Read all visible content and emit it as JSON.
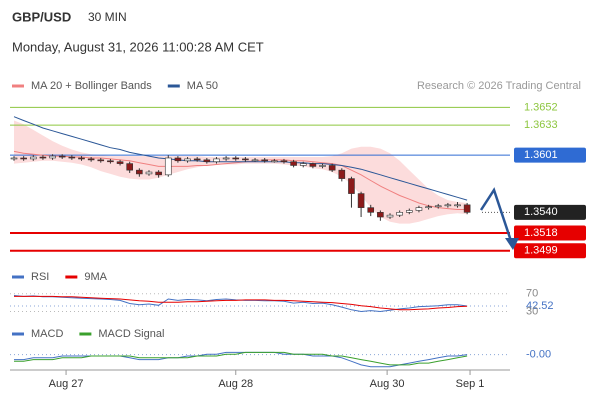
{
  "header": {
    "symbol": "GBP/USD",
    "interval": "30 MIN",
    "datetime": "Monday, August 31, 2026 11:00:28 AM CET",
    "credit": "Research © 2026 Trading Central"
  },
  "chart_data": [
    {
      "type": "candlestick",
      "ylim": [
        1.3487,
        1.3662
      ],
      "xlim": [
        -0.4,
        50.6
      ],
      "xticks": [
        {
          "value": 5.4,
          "label": "Aug 27"
        },
        {
          "value": 23,
          "label": "Aug 28"
        },
        {
          "value": 38.7,
          "label": "Aug 30"
        },
        {
          "value": 47.3,
          "label": "Sep 1"
        }
      ],
      "up_color": "#ffffff",
      "down_color": "#8b1a1a",
      "open": [
        1.3597,
        1.3598,
        1.3597,
        1.3599,
        1.3598,
        1.36,
        1.3599,
        1.3598,
        1.3597,
        1.3596,
        1.3595,
        1.3594,
        1.3592,
        1.3585,
        1.3581,
        1.3583,
        1.358,
        1.3598,
        1.3595,
        1.3597,
        1.3596,
        1.3594,
        1.3597,
        1.3598,
        1.3597,
        1.3596,
        1.3596,
        1.3595,
        1.3595,
        1.3594,
        1.359,
        1.3592,
        1.3589,
        1.359,
        1.3585,
        1.3576,
        1.356,
        1.3545,
        1.354,
        1.3535,
        1.3537,
        1.354,
        1.3542,
        1.3545,
        1.3546,
        1.3547,
        1.3548,
        1.3548
      ],
      "high": [
        1.36,
        1.36,
        1.3601,
        1.3601,
        1.3602,
        1.3602,
        1.3601,
        1.36,
        1.3599,
        1.3598,
        1.3597,
        1.3596,
        1.3594,
        1.3587,
        1.3585,
        1.3585,
        1.3601,
        1.36,
        1.3599,
        1.3599,
        1.3598,
        1.3599,
        1.36,
        1.36,
        1.3599,
        1.3598,
        1.3598,
        1.3597,
        1.3597,
        1.3596,
        1.3594,
        1.3593,
        1.3592,
        1.3592,
        1.3587,
        1.3578,
        1.3562,
        1.3548,
        1.3542,
        1.3539,
        1.3542,
        1.3544,
        1.3547,
        1.3548,
        1.3549,
        1.355,
        1.3551,
        1.355
      ],
      "low": [
        1.3595,
        1.3595,
        1.3595,
        1.3596,
        1.3596,
        1.3597,
        1.3596,
        1.3595,
        1.3594,
        1.3593,
        1.3592,
        1.359,
        1.3582,
        1.3578,
        1.3579,
        1.3577,
        1.3578,
        1.3593,
        1.3593,
        1.3594,
        1.3592,
        1.3592,
        1.3595,
        1.3595,
        1.3594,
        1.3594,
        1.3593,
        1.3593,
        1.3592,
        1.3588,
        1.3588,
        1.3587,
        1.3587,
        1.3583,
        1.3573,
        1.3545,
        1.3535,
        1.3536,
        1.3531,
        1.3533,
        1.3535,
        1.3538,
        1.354,
        1.3543,
        1.3544,
        1.3545,
        1.3545,
        1.3538
      ],
      "close": [
        1.3598,
        1.3597,
        1.3599,
        1.3598,
        1.36,
        1.3599,
        1.3598,
        1.3597,
        1.3596,
        1.3595,
        1.3594,
        1.3592,
        1.3585,
        1.3581,
        1.3583,
        1.358,
        1.3598,
        1.3595,
        1.3597,
        1.3596,
        1.3594,
        1.3597,
        1.3598,
        1.3597,
        1.3596,
        1.3596,
        1.3595,
        1.3595,
        1.3594,
        1.359,
        1.3592,
        1.3589,
        1.359,
        1.3585,
        1.3576,
        1.356,
        1.3545,
        1.354,
        1.3535,
        1.3537,
        1.354,
        1.3542,
        1.3545,
        1.3546,
        1.3547,
        1.3548,
        1.3548,
        1.354
      ],
      "series": [
        {
          "name": "MA 20 + Bollinger Bands",
          "color": "#f08080",
          "band_color": "#fbd3d3",
          "values": [
            1.3605,
            1.3603,
            1.3602,
            1.3601,
            1.36,
            1.36,
            1.3599,
            1.3599,
            1.3598,
            1.3598,
            1.3597,
            1.3596,
            1.3595,
            1.3593,
            1.3591,
            1.3589,
            1.3589,
            1.3589,
            1.3589,
            1.359,
            1.359,
            1.3591,
            1.3592,
            1.3593,
            1.3594,
            1.3595,
            1.3596,
            1.3596,
            1.3596,
            1.3595,
            1.3595,
            1.3594,
            1.3593,
            1.3592,
            1.359,
            1.3585,
            1.358,
            1.3574,
            1.3568,
            1.3563,
            1.3558,
            1.3554,
            1.355,
            1.3547,
            1.3545,
            1.3544,
            1.3543,
            1.3543
          ],
          "upper": [
            1.3638,
            1.3634,
            1.3628,
            1.3622,
            1.3616,
            1.3611,
            1.3607,
            1.3604,
            1.3602,
            1.3601,
            1.36,
            1.36,
            1.36,
            1.36,
            1.36,
            1.36,
            1.36,
            1.36,
            1.36,
            1.36,
            1.3599,
            1.3599,
            1.3599,
            1.3599,
            1.3599,
            1.3599,
            1.3599,
            1.3599,
            1.3599,
            1.3599,
            1.3599,
            1.3599,
            1.3599,
            1.36,
            1.3603,
            1.3608,
            1.361,
            1.361,
            1.3608,
            1.3603,
            1.3595,
            1.3585,
            1.3575,
            1.3565,
            1.3558,
            1.3553,
            1.3551,
            1.355
          ],
          "lower": [
            1.3592,
            1.3593,
            1.3594,
            1.3595,
            1.3595,
            1.3594,
            1.3593,
            1.3591,
            1.3588,
            1.3584,
            1.3581,
            1.3578,
            1.3576,
            1.3575,
            1.3575,
            1.3577,
            1.358,
            1.3583,
            1.3586,
            1.3588,
            1.359,
            1.3591,
            1.3591,
            1.3591,
            1.3592,
            1.3592,
            1.3592,
            1.3592,
            1.3591,
            1.359,
            1.3589,
            1.3587,
            1.3586,
            1.3583,
            1.3578,
            1.357,
            1.3558,
            1.3545,
            1.3535,
            1.353,
            1.3528,
            1.3528,
            1.353,
            1.3533,
            1.3536,
            1.3538,
            1.3539,
            1.3538
          ]
        },
        {
          "name": "MA 50",
          "color": "#2b5797",
          "values": [
            1.3642,
            1.3638,
            1.3634,
            1.363,
            1.3627,
            1.3624,
            1.3621,
            1.3618,
            1.3615,
            1.3612,
            1.3609,
            1.3607,
            1.3604,
            1.3602,
            1.36,
            1.3598,
            1.3597,
            1.3596,
            1.3595,
            1.3595,
            1.3594,
            1.3594,
            1.3594,
            1.3594,
            1.3594,
            1.3594,
            1.3594,
            1.3594,
            1.3594,
            1.3593,
            1.3593,
            1.3592,
            1.3592,
            1.3591,
            1.359,
            1.3588,
            1.3586,
            1.3583,
            1.358,
            1.3577,
            1.3574,
            1.3571,
            1.3568,
            1.3565,
            1.3562,
            1.3559,
            1.3556,
            1.3553
          ]
        }
      ],
      "levels": [
        {
          "value": 1.3652,
          "color": "#8dc63f",
          "style": "text"
        },
        {
          "value": 1.3633,
          "color": "#8dc63f",
          "style": "text"
        },
        {
          "value": 1.3601,
          "color": "#2f6bd3",
          "style": "box"
        },
        {
          "value": 1.354,
          "label": "1.3540",
          "color": "#222222",
          "style": "current"
        },
        {
          "value": 1.3518,
          "color": "#e60000",
          "style": "box"
        },
        {
          "value": 1.3499,
          "color": "#e60000",
          "style": "box"
        }
      ]
    },
    {
      "type": "line",
      "ylim": [
        20,
        85
      ],
      "yticks": [
        70,
        42.52,
        30
      ],
      "series": [
        {
          "name": "RSI",
          "color": "#4472c4",
          "values": [
            66,
            64,
            65,
            63,
            63,
            62,
            61,
            60,
            59,
            58,
            57,
            55,
            48,
            45,
            47,
            44,
            58,
            55,
            57,
            56,
            54,
            57,
            58,
            56,
            55,
            55,
            54,
            54,
            53,
            49,
            51,
            48,
            49,
            45,
            40,
            34,
            30,
            32,
            30,
            33,
            36,
            38,
            41,
            42,
            43,
            45,
            45,
            42.52
          ]
        },
        {
          "name": "9MA",
          "color": "#e60000",
          "values": [
            64,
            64,
            64,
            64,
            64,
            63,
            63,
            62,
            61,
            60,
            59,
            58,
            56,
            54,
            53,
            51,
            51,
            51,
            52,
            52,
            53,
            54,
            55,
            55,
            56,
            56,
            56,
            55,
            55,
            54,
            53,
            52,
            51,
            50,
            48,
            46,
            43,
            41,
            38,
            36,
            34,
            34,
            35,
            36,
            38,
            39,
            41,
            42
          ]
        }
      ]
    },
    {
      "type": "line",
      "ylim": [
        -0.001,
        0.0008
      ],
      "yticks": [
        {
          "value": -2e-05,
          "label": "-0.00"
        }
      ],
      "series": [
        {
          "name": "MACD",
          "color": "#4472c4",
          "values": [
            -0.0003,
            -0.0003,
            -0.0002,
            -0.0002,
            -0.0002,
            -0.0001,
            -0.0001,
            -0.0001,
            -0.0001,
            -0.0001,
            -0.0001,
            -0.0001,
            -0.0002,
            -0.0003,
            -0.0003,
            -0.0003,
            -0.0002,
            -0.0002,
            -0.0001,
            -0.0001,
            0,
            0,
            0.0001,
            0.0001,
            0.0001,
            0.0001,
            0.0001,
            0.0001,
            0,
            0,
            0,
            -0.0001,
            -0.0001,
            -0.0001,
            -0.0002,
            -0.0004,
            -0.0006,
            -0.0007,
            -0.0007,
            -0.0007,
            -0.0006,
            -0.0005,
            -0.0004,
            -0.0003,
            -0.0002,
            -0.0001,
            -0.0001,
            -2e-05
          ]
        },
        {
          "name": "MACD Signal",
          "color": "#3aa02c",
          "values": [
            -0.0004,
            -0.0004,
            -0.0003,
            -0.0003,
            -0.0003,
            -0.0002,
            -0.0002,
            -0.0002,
            -0.0001,
            -0.0001,
            -0.0001,
            -0.0001,
            -0.0001,
            -0.0002,
            -0.0002,
            -0.0002,
            -0.0002,
            -0.0002,
            -0.0002,
            -0.0001,
            -0.0001,
            -0.0001,
            0,
            0,
            0.0001,
            0.0001,
            0.0001,
            0.0001,
            0.0001,
            0,
            0,
            0,
            0,
            -0.0001,
            -0.0001,
            -0.0002,
            -0.0003,
            -0.0004,
            -0.0005,
            -0.0006,
            -0.0006,
            -0.0006,
            -0.0005,
            -0.0005,
            -0.0004,
            -0.0003,
            -0.0002,
            -0.0001
          ]
        }
      ]
    }
  ]
}
